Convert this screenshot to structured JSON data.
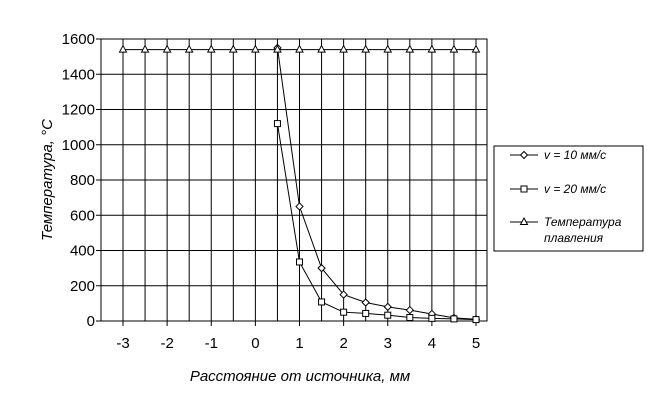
{
  "chart_data": {
    "type": "line",
    "xlabel": "Расстояние от источника, мм",
    "ylabel": "Температура, °С",
    "xlim": [
      -3,
      5
    ],
    "ylim": [
      0,
      1600
    ],
    "x_ticks": [
      "-3",
      "-2",
      "-1",
      "0",
      "1",
      "2",
      "3",
      "4",
      "5"
    ],
    "y_ticks": [
      "0",
      "200",
      "400",
      "600",
      "800",
      "1000",
      "1200",
      "1400",
      "1600"
    ],
    "grid": true,
    "legend_position": "right",
    "series": [
      {
        "name": "v = 10 мм/с",
        "marker": "diamond",
        "points": [
          [
            0.5,
            1550
          ],
          [
            1.0,
            650
          ],
          [
            1.5,
            300
          ],
          [
            2.0,
            150
          ],
          [
            2.5,
            105
          ],
          [
            3.0,
            80
          ],
          [
            3.5,
            62
          ],
          [
            4.0,
            40
          ],
          [
            4.5,
            18
          ],
          [
            5.0,
            10
          ]
        ]
      },
      {
        "name": "v = 20 мм/с",
        "marker": "square",
        "points": [
          [
            0.5,
            1120
          ],
          [
            1.0,
            335
          ],
          [
            1.5,
            108
          ],
          [
            2.0,
            50
          ],
          [
            2.5,
            43
          ],
          [
            3.0,
            33
          ],
          [
            3.5,
            20
          ],
          [
            4.0,
            15
          ],
          [
            4.5,
            12
          ],
          [
            5.0,
            8
          ]
        ]
      },
      {
        "name": "Температура плавления",
        "name_lines": [
          "Температура",
          "плавления"
        ],
        "marker": "triangle",
        "points": [
          [
            -3.0,
            1540
          ],
          [
            -2.5,
            1540
          ],
          [
            -2.0,
            1540
          ],
          [
            -1.5,
            1540
          ],
          [
            -1.0,
            1540
          ],
          [
            -0.5,
            1540
          ],
          [
            0.0,
            1540
          ],
          [
            0.5,
            1540
          ],
          [
            1.0,
            1540
          ],
          [
            1.5,
            1540
          ],
          [
            2.0,
            1540
          ],
          [
            2.5,
            1540
          ],
          [
            3.0,
            1540
          ],
          [
            3.5,
            1540
          ],
          [
            4.0,
            1540
          ],
          [
            4.5,
            1540
          ],
          [
            5.0,
            1540
          ]
        ]
      }
    ]
  }
}
